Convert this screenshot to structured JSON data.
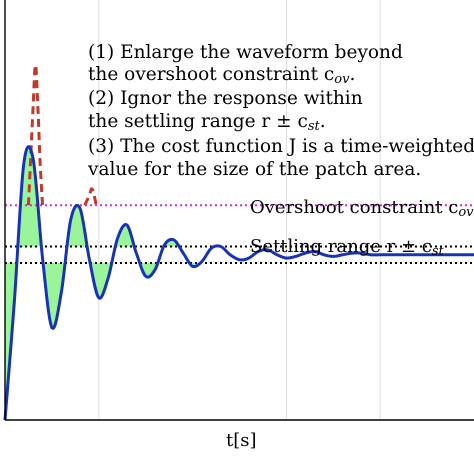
{
  "chart_data": {
    "type": "line",
    "title": "",
    "xlabel": "t[s]",
    "ylabel": "",
    "grid": true,
    "reference_value": 0,
    "overshoot_upper": 0.3,
    "settling_upper": 0.05,
    "settling_lower": -0.05,
    "ylim": [
      -1.0,
      1.3
    ],
    "xlim": [
      0,
      10
    ],
    "x_grid": [
      2,
      6,
      8
    ],
    "series": [
      {
        "name": "",
        "style": "solid",
        "x": [
          0,
          0.2,
          0.4,
          0.6,
          0.8,
          1.0,
          1.2,
          1.4,
          1.6,
          1.8,
          2.0,
          2.2,
          2.4,
          2.6,
          2.8,
          3.0,
          3.2,
          3.4,
          3.6,
          3.8,
          4.0,
          4.2,
          4.4,
          4.6,
          4.8,
          5.0,
          5.2,
          5.4,
          5.6,
          5.8,
          6.0,
          6.2,
          6.4,
          6.6,
          6.8,
          7.0,
          7.2,
          7.4,
          7.6,
          7.8,
          8.0,
          8.2,
          8.4,
          8.6,
          8.8,
          9.0,
          9.2,
          9.4,
          9.6,
          9.8,
          10.0
        ],
        "y": [
          -1.0,
          -0.28,
          0.55,
          0.58,
          -0.02,
          -0.44,
          -0.23,
          0.21,
          0.28,
          -0.03,
          -0.26,
          -0.14,
          0.1,
          0.18,
          0.01,
          -0.13,
          -0.09,
          0.06,
          0.09,
          0.01,
          -0.07,
          -0.04,
          0.04,
          0.05,
          0.0,
          -0.03,
          -0.02,
          0.02,
          0.03,
          0.0,
          -0.02,
          -0.01,
          0.01,
          0.02,
          0.0,
          -0.01,
          0.0,
          0.01,
          0.01,
          0.0,
          0.0,
          0.0,
          0.0,
          0.0,
          0.0,
          0.0,
          0.0,
          0.0,
          0.0,
          0.0,
          0.0
        ]
      },
      {
        "name": "",
        "style": "dashed",
        "x": [
          0.5,
          0.55,
          0.6,
          0.65,
          0.7,
          0.75,
          0.8,
          1.7,
          1.8,
          1.85,
          1.9,
          1.95,
          2.0
        ],
        "y": [
          0.3,
          0.6,
          0.9,
          1.15,
          0.9,
          0.55,
          0.3,
          0.3,
          0.36,
          0.4,
          0.36,
          0.3,
          0.3
        ]
      }
    ]
  },
  "annotations": {
    "line1": "(1) Enlarge the waveform beyond",
    "line2": "the overshoot constraint c",
    "line2_sub": "ov",
    "line3": "(2) Ignor the response within",
    "line4": "the settling range r ± c",
    "line4_sub": "st",
    "line5": "(3) The cost function J is a time-weighted",
    "line6": "value for the size of the patch area.",
    "overshoot_label": "Overshoot constraint c",
    "overshoot_sub": "ov",
    "settling_label": "Settling range r ± c",
    "settling_sub": "st",
    "xlabel": "t[s]"
  },
  "colors": {
    "response": "#1a33b3",
    "dashed": "#c0392b",
    "overshoot_line": "#cc33cc",
    "settling_line": "#000000",
    "patch": "#9af59a",
    "grid": "#dddddd"
  }
}
